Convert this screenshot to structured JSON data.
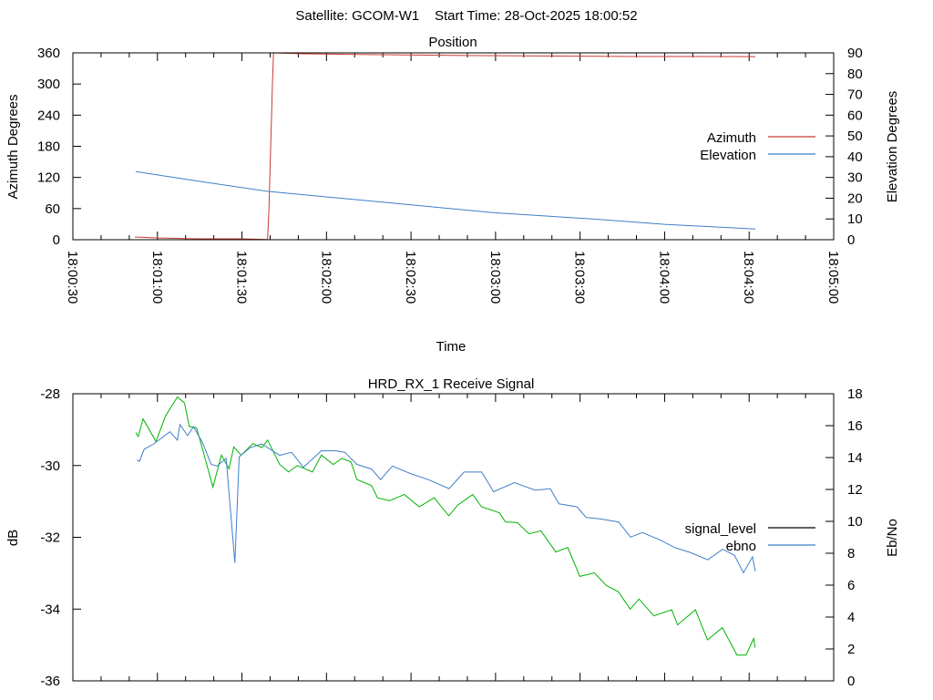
{
  "header": {
    "title": "Satellite: GCOM-W1    Start Time: 28-Oct-2025 18:00:52"
  },
  "chart_data": [
    {
      "type": "line",
      "title": "Position",
      "xlabel": "Time",
      "ylabel": "Azimuth Degrees",
      "y2label": "Elevation Degrees",
      "x_origin": "18:00:30",
      "x_unit": "seconds since 18:00:30",
      "xlim": [
        0,
        270
      ],
      "ylim": [
        0,
        360
      ],
      "y2lim": [
        0,
        90
      ],
      "x_ticks": [
        "18:00:30",
        "18:01:00",
        "18:01:30",
        "18:02:00",
        "18:02:30",
        "18:03:00",
        "18:03:30",
        "18:04:00",
        "18:04:30",
        "18:05:00"
      ],
      "y_ticks": [
        "0",
        "60",
        "120",
        "180",
        "240",
        "300",
        "360"
      ],
      "y2_ticks": [
        "0",
        "10",
        "20",
        "30",
        "40",
        "50",
        "60",
        "70",
        "80",
        "90"
      ],
      "legend": "right",
      "series": [
        {
          "name": "Azimuth",
          "axis": "y",
          "color": "#c83a32",
          "points": [
            [
              22,
              5.2
            ],
            [
              29.5,
              3.5
            ],
            [
              43.9,
              1.7
            ],
            [
              59.5,
              1.7
            ],
            [
              68.8,
              0.5
            ],
            [
              69.1,
              0
            ],
            [
              69.6,
              60
            ],
            [
              70.2,
              180
            ],
            [
              70.8,
              300
            ],
            [
              71.2,
              360
            ],
            [
              81.8,
              358.3
            ],
            [
              109,
              356.5
            ],
            [
              144.6,
              354.8
            ],
            [
              198,
              353
            ],
            [
              242.2,
              352.8
            ]
          ]
        },
        {
          "name": "Elevation",
          "axis": "y2",
          "color": "#3f7fc8",
          "points": [
            [
              22.3,
              32.8
            ],
            [
              45,
              28.1
            ],
            [
              69,
              23.3
            ],
            [
              109,
              18.2
            ],
            [
              149,
              13.1
            ],
            [
              185,
              9.9
            ],
            [
              210,
              7.4
            ],
            [
              242.2,
              5.2
            ]
          ]
        }
      ]
    },
    {
      "type": "line",
      "title": "HRD_RX_1 Receive Signal",
      "ylabel": "dB",
      "y2label": "Eb/No",
      "x_origin": "18:00:30",
      "x_unit": "seconds since 18:00:30",
      "xlim": [
        0,
        270
      ],
      "ylim": [
        -36,
        -28
      ],
      "y2lim": [
        0,
        18
      ],
      "y_ticks": [
        "-36",
        "-34",
        "-32",
        "-30",
        "-28"
      ],
      "y2_ticks": [
        "0",
        "2",
        "4",
        "6",
        "8",
        "10",
        "12",
        "14",
        "16",
        "18"
      ],
      "legend": "right",
      "series": [
        {
          "name": "signal_level",
          "axis": "y",
          "color": "#00b400",
          "legend_color": "#000000",
          "points": [
            [
              22.3,
              -29.08
            ],
            [
              23.2,
              -29.19
            ],
            [
              24.9,
              -28.7
            ],
            [
              29.5,
              -29.33
            ],
            [
              32.9,
              -28.62
            ],
            [
              37.1,
              -28.09
            ],
            [
              39.6,
              -28.26
            ],
            [
              41.3,
              -28.91
            ],
            [
              43.9,
              -28.95
            ],
            [
              49.7,
              -30.6
            ],
            [
              52.7,
              -29.71
            ],
            [
              55.4,
              -30.09
            ],
            [
              57.1,
              -29.48
            ],
            [
              59.7,
              -29.71
            ],
            [
              63.9,
              -29.39
            ],
            [
              67.1,
              -29.5
            ],
            [
              69.1,
              -29.29
            ],
            [
              73.4,
              -29.97
            ],
            [
              76.5,
              -30.18
            ],
            [
              79.7,
              -30.0
            ],
            [
              85,
              -30.18
            ],
            [
              88.2,
              -29.71
            ],
            [
              92.4,
              -29.97
            ],
            [
              95.5,
              -29.8
            ],
            [
              98.7,
              -29.9
            ],
            [
              100.8,
              -30.39
            ],
            [
              106,
              -30.56
            ],
            [
              108.1,
              -30.9
            ],
            [
              112.4,
              -30.98
            ],
            [
              117.6,
              -30.81
            ],
            [
              122.9,
              -31.15
            ],
            [
              128.2,
              -30.9
            ],
            [
              133.4,
              -31.4
            ],
            [
              136.6,
              -31.1
            ],
            [
              141.9,
              -30.81
            ],
            [
              145,
              -31.15
            ],
            [
              151.4,
              -31.32
            ],
            [
              153.5,
              -31.57
            ],
            [
              157.7,
              -31.59
            ],
            [
              161.9,
              -31.9
            ],
            [
              166.1,
              -31.82
            ],
            [
              171.4,
              -32.41
            ],
            [
              175.6,
              -32.28
            ],
            [
              179.9,
              -33.09
            ],
            [
              185.1,
              -32.99
            ],
            [
              189.3,
              -33.34
            ],
            [
              193.5,
              -33.51
            ],
            [
              197.8,
              -34.0
            ],
            [
              200.9,
              -33.72
            ],
            [
              206.2,
              -34.19
            ],
            [
              212.5,
              -34.02
            ],
            [
              214.6,
              -34.44
            ],
            [
              220.9,
              -34.02
            ],
            [
              225.2,
              -34.86
            ],
            [
              230.5,
              -34.52
            ],
            [
              235.7,
              -35.28
            ],
            [
              238.9,
              -35.28
            ],
            [
              241.6,
              -34.82
            ],
            [
              242.1,
              -35.07
            ]
          ]
        },
        {
          "name": "ebno",
          "axis": "y2",
          "color": "#3f7fc8",
          "points": [
            [
              22.8,
              13.85
            ],
            [
              23.6,
              13.76
            ],
            [
              25.3,
              14.52
            ],
            [
              28.7,
              14.86
            ],
            [
              34.4,
              15.62
            ],
            [
              37.1,
              15.09
            ],
            [
              38,
              16.07
            ],
            [
              40.7,
              15.37
            ],
            [
              42.8,
              15.94
            ],
            [
              46,
              14.93
            ],
            [
              49.1,
              13.57
            ],
            [
              51.2,
              13.47
            ],
            [
              54.4,
              13.95
            ],
            [
              57.5,
              7.4
            ],
            [
              59,
              14.04
            ],
            [
              62.8,
              14.61
            ],
            [
              67,
              14.86
            ],
            [
              73.4,
              14.14
            ],
            [
              77.6,
              14.33
            ],
            [
              81.8,
              13.38
            ],
            [
              88.1,
              14.42
            ],
            [
              93.4,
              14.42
            ],
            [
              96.5,
              14.33
            ],
            [
              100.8,
              13.57
            ],
            [
              106,
              13.28
            ],
            [
              109.2,
              12.62
            ],
            [
              113.4,
              13.47
            ],
            [
              119.7,
              13.0
            ],
            [
              126.1,
              12.62
            ],
            [
              133.5,
              12.05
            ],
            [
              138.8,
              13.09
            ],
            [
              145.1,
              13.09
            ],
            [
              149.3,
              11.86
            ],
            [
              156.7,
              12.43
            ],
            [
              164.1,
              11.95
            ],
            [
              169.4,
              12.05
            ],
            [
              172.5,
              11.1
            ],
            [
              178.9,
              10.91
            ],
            [
              182.1,
              10.25
            ],
            [
              187.3,
              10.15
            ],
            [
              193.7,
              9.96
            ],
            [
              197.9,
              9.01
            ],
            [
              202.1,
              9.3
            ],
            [
              208.5,
              8.82
            ],
            [
              213.7,
              8.35
            ],
            [
              219,
              8.06
            ],
            [
              225.3,
              7.59
            ],
            [
              230.6,
              8.25
            ],
            [
              234.8,
              7.87
            ],
            [
              238,
              6.77
            ],
            [
              241.2,
              7.78
            ],
            [
              242.2,
              6.87
            ]
          ]
        }
      ]
    }
  ]
}
